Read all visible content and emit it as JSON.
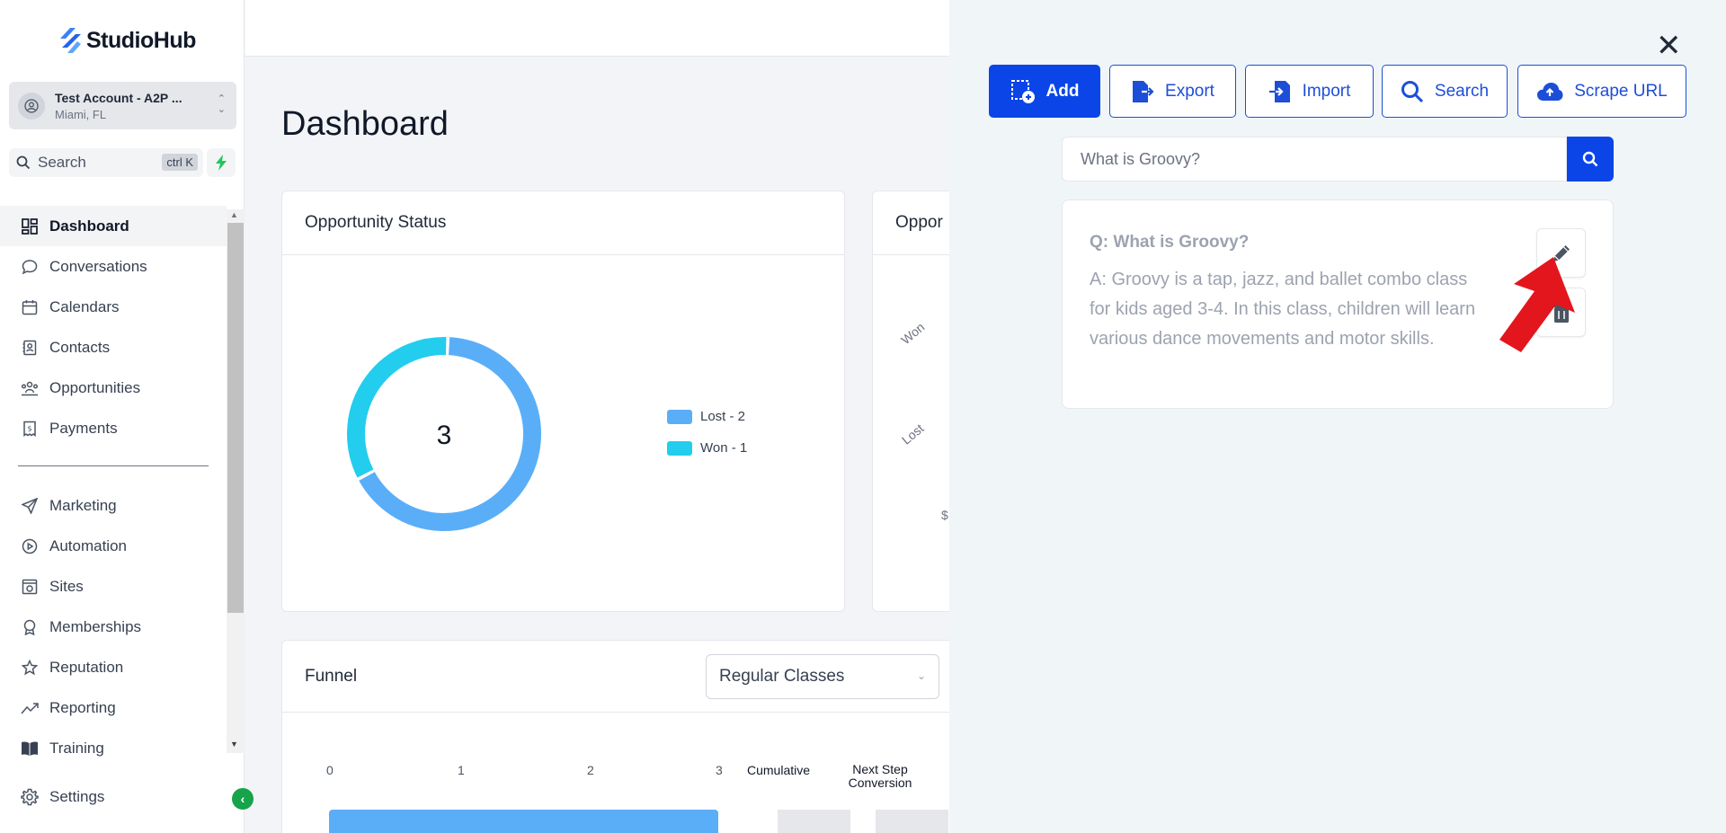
{
  "brand": {
    "name": "StudioHub"
  },
  "account": {
    "name": "Test Account - A2P ...",
    "location": "Miami, FL"
  },
  "search": {
    "label": "Search",
    "shortcut": "ctrl K"
  },
  "nav": {
    "primary": [
      {
        "label": "Dashboard",
        "icon": "dashboard-icon",
        "active": true
      },
      {
        "label": "Conversations",
        "icon": "chat-icon"
      },
      {
        "label": "Calendars",
        "icon": "calendar-icon"
      },
      {
        "label": "Contacts",
        "icon": "contacts-icon"
      },
      {
        "label": "Opportunities",
        "icon": "opportunities-icon"
      },
      {
        "label": "Payments",
        "icon": "payments-icon"
      }
    ],
    "secondary": [
      {
        "label": "Marketing",
        "icon": "send-icon"
      },
      {
        "label": "Automation",
        "icon": "automation-icon"
      },
      {
        "label": "Sites",
        "icon": "sites-icon"
      },
      {
        "label": "Memberships",
        "icon": "badge-icon"
      },
      {
        "label": "Reputation",
        "icon": "star-icon"
      },
      {
        "label": "Reporting",
        "icon": "trend-icon"
      },
      {
        "label": "Training",
        "icon": "book-icon"
      }
    ],
    "settings": "Settings"
  },
  "main": {
    "title": "Dashboard",
    "opportunity_status": {
      "title": "Opportunity Status",
      "total": "3",
      "legend": [
        {
          "label": "Lost - 2",
          "color": "#5aaef8"
        },
        {
          "label": "Won - 1",
          "color": "#22cdee"
        }
      ]
    },
    "opportunity_value": {
      "title": "Oppor",
      "labels": [
        "Won",
        "Lost",
        "$"
      ]
    },
    "funnel": {
      "title": "Funnel",
      "select_value": "Regular Classes",
      "ticks": [
        "0",
        "1",
        "2",
        "3"
      ],
      "col_cumulative": "Cumulative",
      "col_next_step": "Next Step",
      "col_next_step_2": "Conversion"
    }
  },
  "chart_data": {
    "type": "pie",
    "categories": [
      "Lost",
      "Won"
    ],
    "values": [
      2,
      1
    ],
    "center_label": "3",
    "legend": "right"
  },
  "panel": {
    "buttons": {
      "add": "Add",
      "export": "Export",
      "import": "Import",
      "search": "Search",
      "scrape": "Scrape URL"
    },
    "query_value": "What is Groovy?",
    "qa": {
      "question": "Q: What is Groovy?",
      "answer": "A: Groovy is a tap, jazz, and ballet combo class for kids aged 3-4. In this class, children will learn various dance movements and motor skills."
    }
  },
  "colors": {
    "primary": "#0b45e8",
    "accent_green": "#16a34a",
    "lost": "#5aaef8",
    "won": "#22cdee",
    "annotation_arrow": "#e3161d"
  }
}
